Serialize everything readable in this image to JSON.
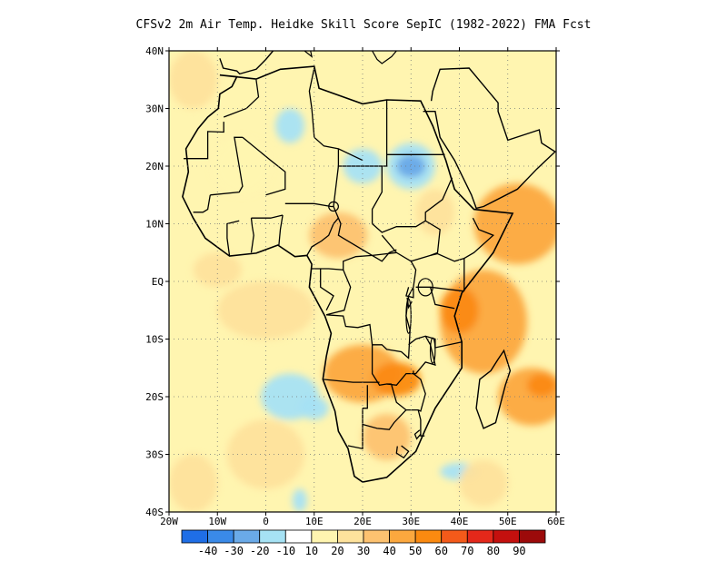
{
  "title": "CFSv2  2m Air Temp. Heidke Skill Score SepIC (1982-2022) FMA Fcst",
  "map": {
    "region": "Africa",
    "lon_range": [
      -20,
      60
    ],
    "lat_range": [
      -40,
      40
    ],
    "grid": true,
    "lat_ticks": [
      {
        "value": 40,
        "label": "40N"
      },
      {
        "value": 30,
        "label": "30N"
      },
      {
        "value": 20,
        "label": "20N"
      },
      {
        "value": 10,
        "label": "10N"
      },
      {
        "value": 0,
        "label": "EQ"
      },
      {
        "value": -10,
        "label": "10S"
      },
      {
        "value": -20,
        "label": "20S"
      },
      {
        "value": -30,
        "label": "30S"
      },
      {
        "value": -40,
        "label": "40S"
      }
    ],
    "lon_ticks": [
      {
        "value": -20,
        "label": "20W"
      },
      {
        "value": -10,
        "label": "10W"
      },
      {
        "value": 0,
        "label": "0"
      },
      {
        "value": 10,
        "label": "10E"
      },
      {
        "value": 20,
        "label": "20E"
      },
      {
        "value": 30,
        "label": "30E"
      },
      {
        "value": 40,
        "label": "40E"
      },
      {
        "value": 50,
        "label": "50E"
      },
      {
        "value": 60,
        "label": "60E"
      }
    ],
    "skill_areas": [
      {
        "lon": -15,
        "lat": 35,
        "rx": 5,
        "ry": 5,
        "level": 20
      },
      {
        "lon": -5,
        "lat": 20,
        "rx": 6,
        "ry": 5,
        "level": 10
      },
      {
        "lon": 5,
        "lat": 27,
        "rx": 3,
        "ry": 3,
        "level": -10
      },
      {
        "lon": 20,
        "lat": 20,
        "rx": 4,
        "ry": 3,
        "level": -10
      },
      {
        "lon": 30,
        "lat": 20,
        "rx": 5,
        "ry": 4,
        "level": -10
      },
      {
        "lon": 30,
        "lat": 20,
        "rx": 3,
        "ry": 2,
        "level": -20
      },
      {
        "lon": 15,
        "lat": 8,
        "rx": 6,
        "ry": 4,
        "level": 30
      },
      {
        "lon": 35,
        "lat": 12,
        "rx": 4,
        "ry": 4,
        "level": 20
      },
      {
        "lon": 52,
        "lat": 10,
        "rx": 9,
        "ry": 7,
        "level": 40
      },
      {
        "lon": 45,
        "lat": -7,
        "rx": 9,
        "ry": 9,
        "level": 40
      },
      {
        "lon": 40,
        "lat": -5,
        "rx": 4,
        "ry": 4,
        "level": 50
      },
      {
        "lon": 20,
        "lat": -16,
        "rx": 8,
        "ry": 5,
        "level": 40
      },
      {
        "lon": 27,
        "lat": -17,
        "rx": 5,
        "ry": 3,
        "level": 50
      },
      {
        "lon": 25,
        "lat": -27,
        "rx": 5,
        "ry": 4,
        "level": 30
      },
      {
        "lon": 55,
        "lat": -20,
        "rx": 7,
        "ry": 5,
        "level": 40
      },
      {
        "lon": 57,
        "lat": -18,
        "rx": 3,
        "ry": 2,
        "level": 50
      },
      {
        "lon": 0,
        "lat": -5,
        "rx": 10,
        "ry": 5,
        "level": 20
      },
      {
        "lon": -10,
        "lat": 2,
        "rx": 5,
        "ry": 3,
        "level": 20
      },
      {
        "lon": 5,
        "lat": -20,
        "rx": 6,
        "ry": 4,
        "level": -10
      },
      {
        "lon": 10,
        "lat": -22,
        "rx": 3,
        "ry": 2,
        "level": -10
      },
      {
        "lon": 7,
        "lat": -38,
        "rx": 1.5,
        "ry": 2,
        "level": -10
      },
      {
        "lon": 40,
        "lat": -33,
        "rx": 4,
        "ry": 1.5,
        "level": -10
      },
      {
        "lon": 0,
        "lat": -30,
        "rx": 8,
        "ry": 6,
        "level": 20
      },
      {
        "lon": -15,
        "lat": -35,
        "rx": 5,
        "ry": 5,
        "level": 20
      },
      {
        "lon": 45,
        "lat": -35,
        "rx": 5,
        "ry": 4,
        "level": 20
      }
    ]
  },
  "colorbar": {
    "colors": [
      "#1f6ee6",
      "#3a8ae8",
      "#6aaae8",
      "#a6e2f4",
      "#ffffff",
      "#fff5b0",
      "#fee29c",
      "#fdc270",
      "#fca83e",
      "#fb8a10",
      "#f45a1a",
      "#e4281a",
      "#c4100e",
      "#9c0a0a"
    ],
    "labels": [
      "-40",
      "-30",
      "-20",
      "-10",
      "10",
      "20",
      "30",
      "40",
      "50",
      "60",
      "70",
      "80",
      "90"
    ]
  }
}
